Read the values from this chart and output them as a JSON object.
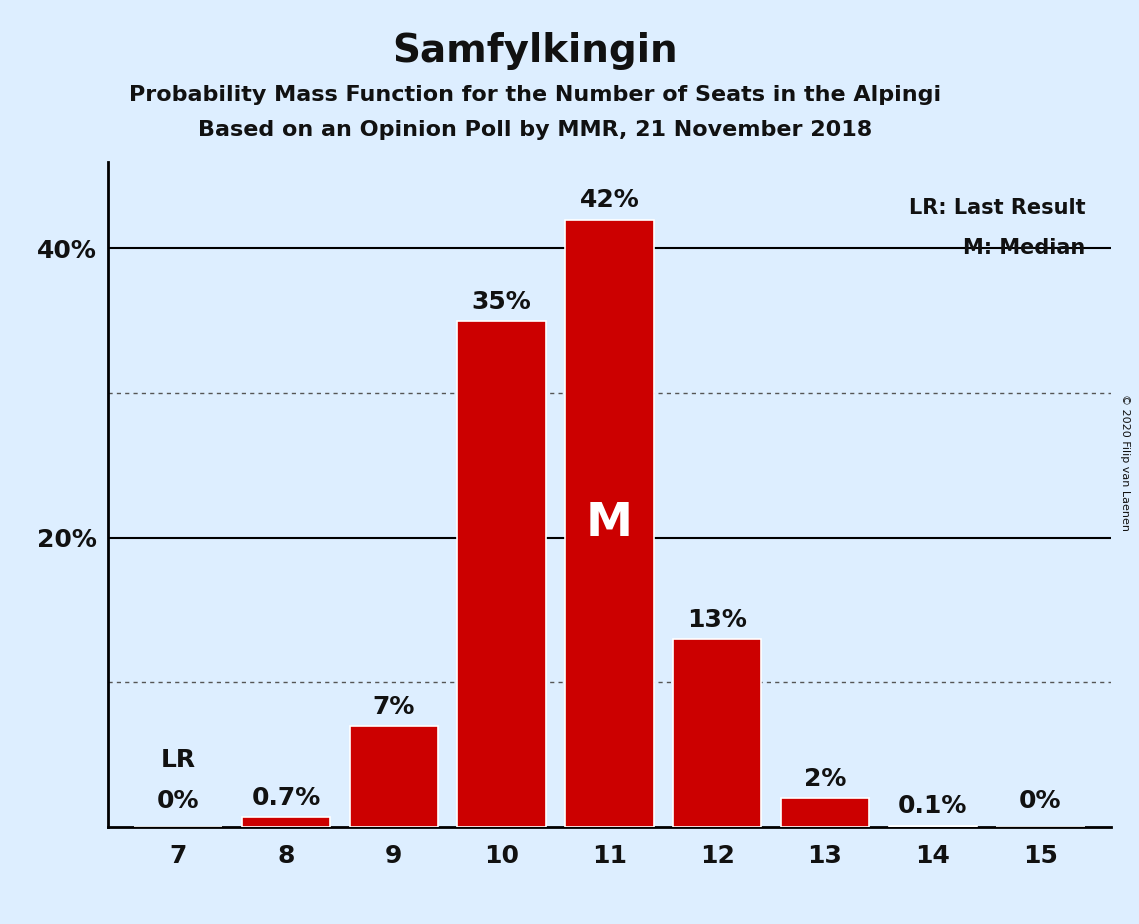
{
  "title": "Samfylkingin",
  "subtitle1": "Probability Mass Function for the Number of Seats in the Alpingi",
  "subtitle2": "Based on an Opinion Poll by MMR, 21 November 2018",
  "copyright": "© 2020 Filip van Laenen",
  "categories": [
    7,
    8,
    9,
    10,
    11,
    12,
    13,
    14,
    15
  ],
  "values": [
    0.0,
    0.7,
    7.0,
    35.0,
    42.0,
    13.0,
    2.0,
    0.1,
    0.0
  ],
  "bar_color": "#cc0000",
  "background_color": "#ddeeff",
  "text_color": "#111111",
  "ylim": [
    0,
    46
  ],
  "solid_yticks": [
    20,
    40
  ],
  "dotted_yticks": [
    10,
    30
  ],
  "bar_labels": [
    "0%",
    "0.7%",
    "7%",
    "35%",
    "42%",
    "13%",
    "2%",
    "0.1%",
    "0%"
  ],
  "lr_seat": 7,
  "median_seat": 11,
  "legend_lr": "LR: Last Result",
  "legend_m": "M: Median",
  "title_fontsize": 28,
  "subtitle_fontsize": 16,
  "tick_fontsize": 18,
  "bar_label_fontsize": 18
}
